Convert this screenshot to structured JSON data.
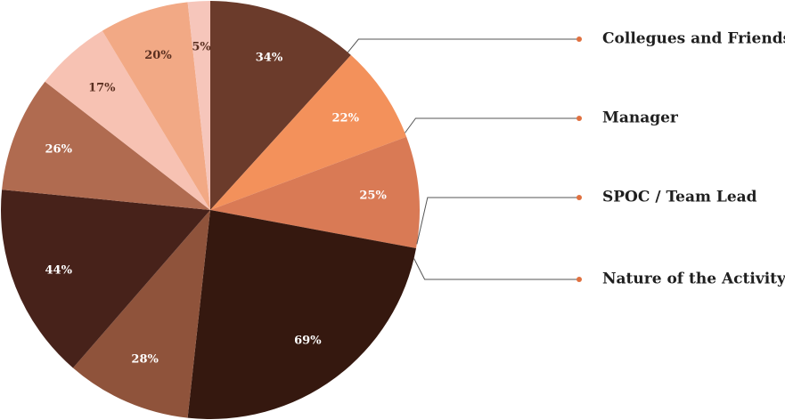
{
  "chart_data": {
    "type": "pie",
    "categories": [
      "Collegues and Friends",
      "Manager",
      "SPOC / Team Lead",
      "Nature of the Activity",
      null,
      null,
      null,
      null,
      null,
      null
    ],
    "values": [
      34,
      22,
      25,
      69,
      28,
      44,
      26,
      17,
      20,
      5
    ],
    "value_labels": [
      "34%",
      "22%",
      "25%",
      "69%",
      "28%",
      "44%",
      "26%",
      "17%",
      "20%",
      "5%"
    ],
    "colors": [
      "#6b3b2b",
      "#f3915b",
      "#d97a55",
      "#35180f",
      "#8f533b",
      "#47221a",
      "#b06b50",
      "#f7c2b3",
      "#f2a985",
      "#f6c6bb"
    ]
  }
}
